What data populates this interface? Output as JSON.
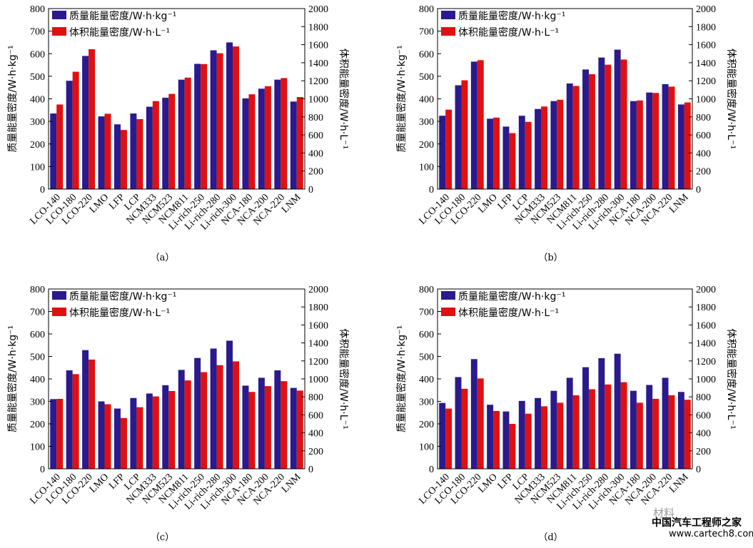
{
  "colors": {
    "mass": "#2a1a8e",
    "volume": "#e01010",
    "axis": "#000000"
  },
  "shared": {
    "categories": [
      "LCO-140",
      "LCO-180",
      "LCO-220",
      "LMO",
      "LFP",
      "LCP",
      "NCM333",
      "NCM523",
      "NCM811",
      "Li-rich-250",
      "Li-rich-280",
      "Li-rich-300",
      "NCA-180",
      "NCA-200",
      "NCA-220",
      "LNM"
    ],
    "legend": [
      "质量能量密度/W·h·kg⁻¹",
      "体积能量密度/W·h·L⁻¹"
    ],
    "ylabel_left": "质量能量密度/W·h·kg⁻¹",
    "ylabel_right": "体积能量密度/W·h·L⁻¹",
    "ylim_left": [
      0,
      800
    ],
    "ylim_right": [
      0,
      2000
    ],
    "yticks_left": [
      "0",
      "100",
      "200",
      "300",
      "400",
      "500",
      "600",
      "700",
      "800"
    ],
    "yticks_right": [
      "0",
      "200",
      "400",
      "600",
      "800",
      "1000",
      "1200",
      "1400",
      "1600",
      "1800",
      "2000"
    ]
  },
  "chart_data": [
    {
      "type": "bar",
      "subtitle": "（a）",
      "series": [
        {
          "name": "质量能量密度/W·h·kg⁻¹",
          "axis": "left",
          "values": [
            335,
            480,
            590,
            322,
            287,
            335,
            365,
            405,
            485,
            555,
            615,
            650,
            402,
            445,
            485,
            388
          ]
        },
        {
          "name": "体积能量密度/W·h·L⁻¹",
          "axis": "right",
          "values": [
            937,
            1300,
            1550,
            835,
            655,
            775,
            975,
            1055,
            1235,
            1385,
            1505,
            1580,
            1050,
            1140,
            1230,
            1020
          ]
        }
      ]
    },
    {
      "type": "bar",
      "subtitle": "（b）",
      "series": [
        {
          "name": "质量能量密度/W·h·kg⁻¹",
          "axis": "left",
          "values": [
            325,
            460,
            565,
            312,
            277,
            325,
            355,
            390,
            468,
            530,
            583,
            618,
            390,
            428,
            465,
            375
          ]
        },
        {
          "name": "体积能量密度/W·h·L⁻¹",
          "axis": "right",
          "values": [
            880,
            1205,
            1428,
            792,
            620,
            745,
            915,
            990,
            1143,
            1273,
            1378,
            1435,
            982,
            1065,
            1135,
            960
          ]
        }
      ]
    },
    {
      "type": "bar",
      "subtitle": "（c）",
      "series": [
        {
          "name": "质量能量密度/W·h·kg⁻¹",
          "axis": "left",
          "values": [
            310,
            438,
            528,
            300,
            268,
            315,
            335,
            372,
            440,
            493,
            535,
            570,
            370,
            405,
            438,
            360
          ]
        },
        {
          "name": "体积能量密度/W·h·L⁻¹",
          "axis": "right",
          "values": [
            778,
            1053,
            1215,
            718,
            565,
            685,
            805,
            865,
            983,
            1075,
            1153,
            1195,
            855,
            920,
            975,
            870
          ]
        }
      ]
    },
    {
      "type": "bar",
      "subtitle": "（d）",
      "series": [
        {
          "name": "质量能量密度/W·h·kg⁻¹",
          "axis": "left",
          "values": [
            293,
            408,
            488,
            285,
            255,
            302,
            315,
            347,
            405,
            452,
            492,
            512,
            347,
            373,
            405,
            342
          ]
        },
        {
          "name": "体积能量密度/W·h·L⁻¹",
          "axis": "right",
          "values": [
            670,
            890,
            1005,
            643,
            500,
            613,
            695,
            735,
            818,
            885,
            938,
            963,
            735,
            778,
            818,
            768
          ]
        }
      ]
    }
  ],
  "watermark": {
    "logo": "材料",
    "site_cn": "中国汽车工程师之家",
    "url": "www.cartech8.com"
  }
}
